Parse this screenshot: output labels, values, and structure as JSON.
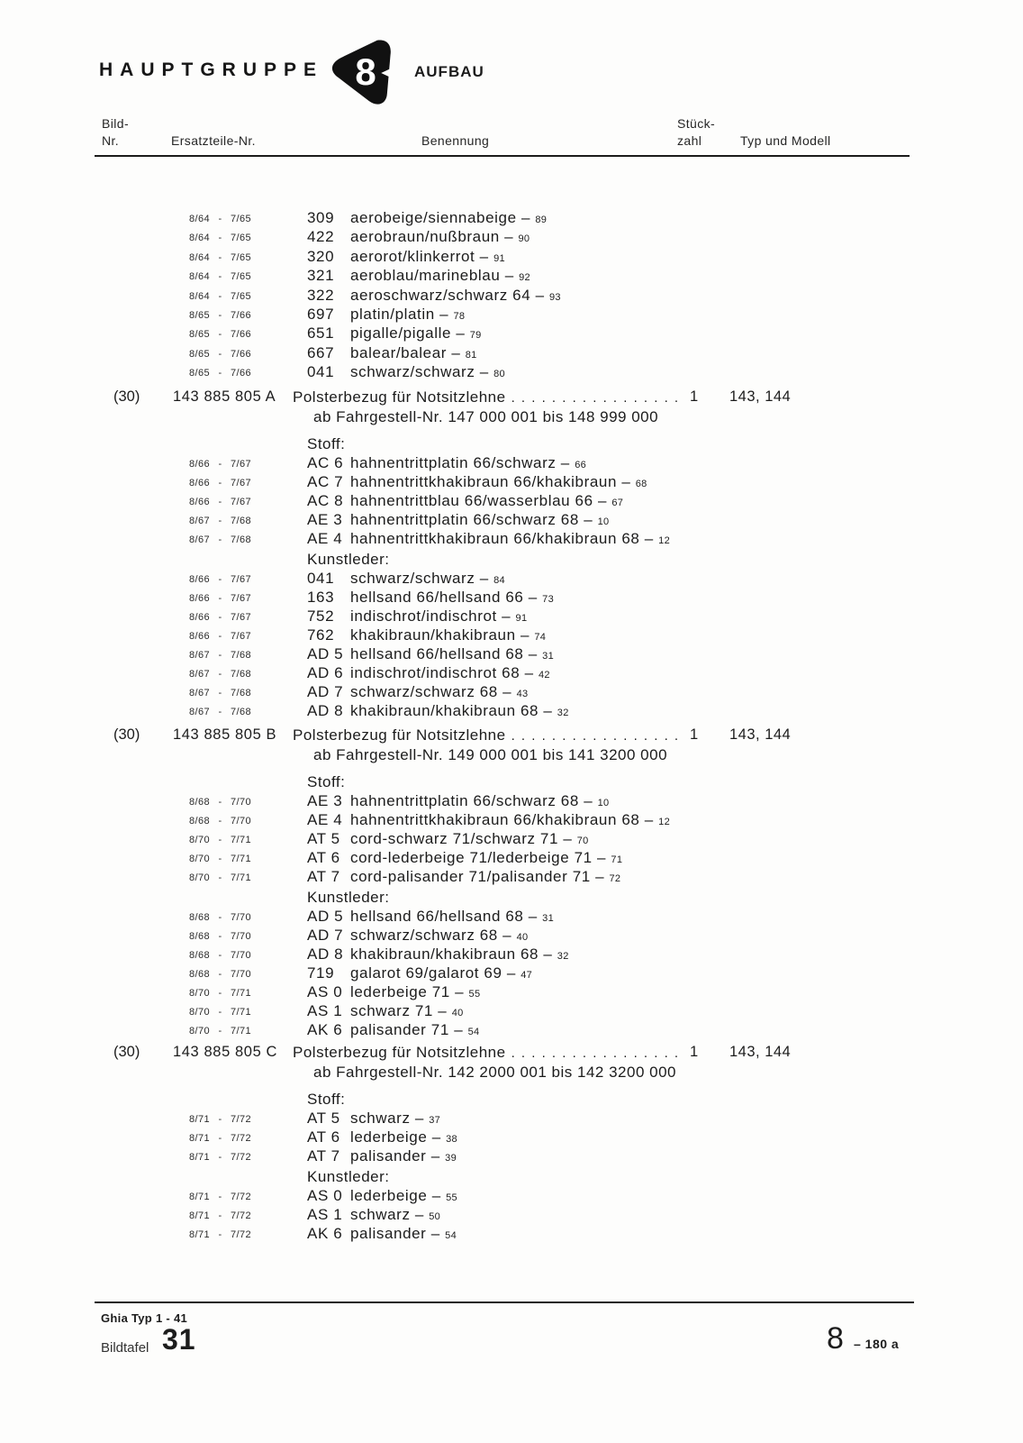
{
  "header": {
    "title": "HAUPTGRUPPE",
    "badge": "8",
    "subtitle": "AUFBAU",
    "col_bild_line1": "Bild-",
    "col_bild_line2": "Nr.",
    "col_ersatzteile": "Ersatzteile-Nr.",
    "col_benennung": "Benennung",
    "col_stueck_line1": "Stück-",
    "col_stueck_line2": "zahl",
    "col_typ": "Typ und Modell"
  },
  "intro_rows": [
    {
      "date": "8/64 - 7/65",
      "code": "309",
      "name": "aerobeige/siennabeige –",
      "ref": "89"
    },
    {
      "date": "8/64 - 7/65",
      "code": "422",
      "name": "aerobraun/nußbraun –",
      "ref": "90"
    },
    {
      "date": "8/64 - 7/65",
      "code": "320",
      "name": "aerorot/klinkerrot –",
      "ref": "91"
    },
    {
      "date": "8/64 - 7/65",
      "code": "321",
      "name": "aeroblau/marineblau –",
      "ref": "92"
    },
    {
      "date": "8/64 - 7/65",
      "code": "322",
      "name": "aeroschwarz/schwarz 64 –",
      "ref": "93"
    },
    {
      "date": "8/65 - 7/66",
      "code": "697",
      "name": "platin/platin –",
      "ref": "78"
    },
    {
      "date": "8/65 - 7/66",
      "code": "651",
      "name": "pigalle/pigalle –",
      "ref": "79"
    },
    {
      "date": "8/65 - 7/66",
      "code": "667",
      "name": "balear/balear –",
      "ref": "81"
    },
    {
      "date": "8/65 - 7/66",
      "code": "041",
      "name": "schwarz/schwarz –",
      "ref": "80"
    }
  ],
  "parts": [
    {
      "bild": "(30)",
      "part_no": "143 885 805 A",
      "name": "Polsterbezug für Notsitzlehne",
      "dots": ". . . . . . . . . . . . . . . . .",
      "qty": "1",
      "typ": "143, 144",
      "subtitle": "ab Fahrgestell-Nr. 147 000 001 bis 148 999 000",
      "sections": [
        {
          "label": "Stoff:",
          "rows": [
            {
              "date": "8/66 - 7/67",
              "code": "AC 6",
              "name": "hahnentrittplatin 66/schwarz –",
              "ref": "66"
            },
            {
              "date": "8/66 - 7/67",
              "code": "AC 7",
              "name": "hahnentrittkhakibraun 66/khakibraun –",
              "ref": "68"
            },
            {
              "date": "8/66 - 7/67",
              "code": "AC 8",
              "name": "hahnentrittblau 66/wasserblau 66 –",
              "ref": "67"
            },
            {
              "date": "8/67 - 7/68",
              "code": "AE 3",
              "name": "hahnentrittplatin 66/schwarz 68 –",
              "ref": "10"
            },
            {
              "date": "8/67 - 7/68",
              "code": "AE 4",
              "name": "hahnentrittkhakibraun 66/khakibraun 68 –",
              "ref": "12"
            }
          ]
        },
        {
          "label": "Kunstleder:",
          "rows": [
            {
              "date": "8/66 - 7/67",
              "code": "041",
              "name": "schwarz/schwarz –",
              "ref": "84"
            },
            {
              "date": "8/66 - 7/67",
              "code": "163",
              "name": "hellsand 66/hellsand 66 –",
              "ref": "73"
            },
            {
              "date": "8/66 - 7/67",
              "code": "752",
              "name": "indischrot/indischrot –",
              "ref": "91"
            },
            {
              "date": "8/66 - 7/67",
              "code": "762",
              "name": "khakibraun/khakibraun –",
              "ref": "74"
            },
            {
              "date": "8/67 - 7/68",
              "code": "AD 5",
              "name": "hellsand 66/hellsand 68 –",
              "ref": "31"
            },
            {
              "date": "8/67 - 7/68",
              "code": "AD 6",
              "name": "indischrot/indischrot 68 –",
              "ref": "42"
            },
            {
              "date": "8/67 - 7/68",
              "code": "AD 7",
              "name": "schwarz/schwarz 68 –",
              "ref": "43"
            },
            {
              "date": "8/67 - 7/68",
              "code": "AD 8",
              "name": "khakibraun/khakibraun 68 –",
              "ref": "32"
            }
          ]
        }
      ]
    },
    {
      "bild": "(30)",
      "part_no": "143 885 805 B",
      "name": "Polsterbezug für Notsitzlehne",
      "dots": ". . . . . . . . . . . . . . . . .",
      "qty": "1",
      "typ": "143, 144",
      "subtitle": "ab Fahrgestell-Nr. 149 000 001 bis 141 3200 000",
      "sections": [
        {
          "label": "Stoff:",
          "rows": [
            {
              "date": "8/68 - 7/70",
              "code": "AE 3",
              "name": "hahnentrittplatin 66/schwarz 68 –",
              "ref": "10"
            },
            {
              "date": "8/68 - 7/70",
              "code": "AE 4",
              "name": "hahnentrittkhakibraun 66/khakibraun 68 –",
              "ref": "12"
            },
            {
              "date": "8/70 - 7/71",
              "code": "AT 5",
              "name": "cord-schwarz 71/schwarz 71 –",
              "ref": "70"
            },
            {
              "date": "8/70 - 7/71",
              "code": "AT 6",
              "name": "cord-lederbeige 71/lederbeige 71 –",
              "ref": "71"
            },
            {
              "date": "8/70 - 7/71",
              "code": "AT 7",
              "name": "cord-palisander 71/palisander 71 –",
              "ref": "72"
            }
          ]
        },
        {
          "label": "Kunstleder:",
          "rows": [
            {
              "date": "8/68 - 7/70",
              "code": "AD 5",
              "name": "hellsand 66/hellsand 68 –",
              "ref": "31"
            },
            {
              "date": "8/68 - 7/70",
              "code": "AD 7",
              "name": "schwarz/schwarz 68 –",
              "ref": "40"
            },
            {
              "date": "8/68 - 7/70",
              "code": "AD 8",
              "name": "khakibraun/khakibraun 68 –",
              "ref": "32"
            },
            {
              "date": "8/68 - 7/70",
              "code": "719",
              "name": "galarot 69/galarot 69 –",
              "ref": "47"
            },
            {
              "date": "8/70 - 7/71",
              "code": "AS 0",
              "name": "lederbeige 71 –",
              "ref": "55"
            },
            {
              "date": "8/70 - 7/71",
              "code": "AS 1",
              "name": "schwarz 71 –",
              "ref": "40"
            },
            {
              "date": "8/70 - 7/71",
              "code": "AK 6",
              "name": "palisander 71 –",
              "ref": "54"
            }
          ]
        }
      ]
    },
    {
      "bild": "(30)",
      "part_no": "143 885 805 C",
      "name": "Polsterbezug für Notsitzlehne",
      "dots": ". . . . . . . . . . . . . . . . .",
      "qty": "1",
      "typ": "143, 144",
      "subtitle": "ab Fahrgestell-Nr. 142 2000 001 bis 142 3200 000",
      "sections": [
        {
          "label": "Stoff:",
          "rows": [
            {
              "date": "8/71 - 7/72",
              "code": "AT 5",
              "name": "schwarz –",
              "ref": "37"
            },
            {
              "date": "8/71 - 7/72",
              "code": "AT 6",
              "name": "lederbeige –",
              "ref": "38"
            },
            {
              "date": "8/71 - 7/72",
              "code": "AT 7",
              "name": "palisander –",
              "ref": "39"
            }
          ]
        },
        {
          "label": "Kunstleder:",
          "rows": [
            {
              "date": "8/71 - 7/72",
              "code": "AS 0",
              "name": "lederbeige –",
              "ref": "55"
            },
            {
              "date": "8/71 - 7/72",
              "code": "AS 1",
              "name": "schwarz –",
              "ref": "50"
            },
            {
              "date": "8/71 - 7/72",
              "code": "AK 6",
              "name": "palisander –",
              "ref": "54"
            }
          ]
        }
      ]
    }
  ],
  "footer": {
    "model_line": "Ghia Typ 1 - 41",
    "bildtafel_label": "Bildtafel",
    "bildtafel_no": "31",
    "page_group": "8",
    "page_ref": "– 180 a"
  },
  "colors": {
    "ink": "#1c1c1c",
    "paper": "#fdfdfc"
  }
}
